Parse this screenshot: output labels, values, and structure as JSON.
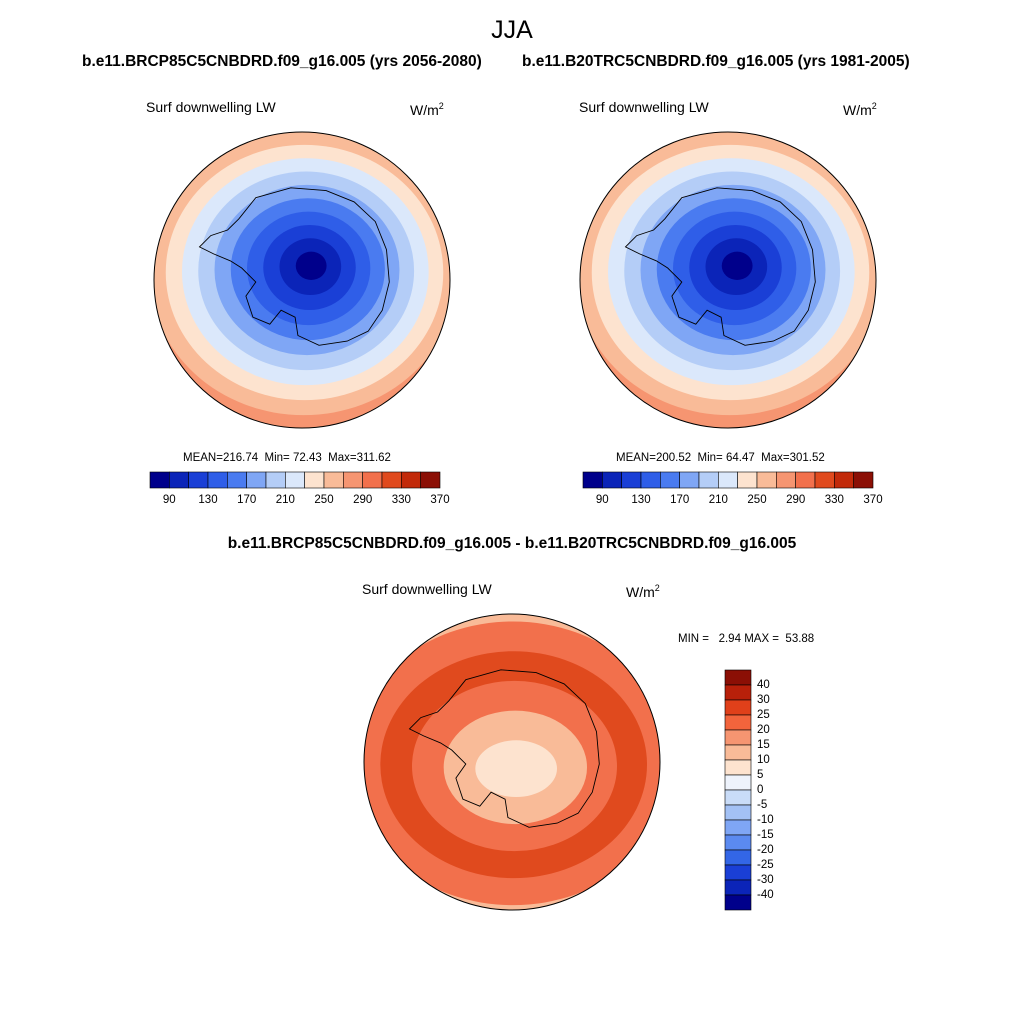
{
  "figure": {
    "title": "JJA",
    "left_case_title": "b.e11.BRCP85C5CNBDRD.f09_g16.005 (yrs 2056-2080)",
    "right_case_title": "b.e11.B20TRC5CNBDRD.f09_g16.005 (yrs 1981-2005)",
    "diff_title": "b.e11.BRCP85C5CNBDRD.f09_g16.005 - b.e11.B20TRC5CNBDRD.f09_g16.005"
  },
  "chart_data": [
    {
      "type": "heatmap",
      "projection": "south-polar stereographic",
      "variable_label": "Surf downwelling LW",
      "units_base": "W/m",
      "units_exp": "2",
      "stats": {
        "mean_label": "MEAN=",
        "mean": "216.74",
        "min_label": "Min=",
        "min": "72.43",
        "max_label": "Max=",
        "max": "311.62"
      },
      "colorbar": {
        "orientation": "horizontal",
        "tick_labels": [
          "90",
          "130",
          "170",
          "210",
          "250",
          "290",
          "330",
          "370"
        ],
        "colors": [
          "#00008b",
          "#0b24b8",
          "#1a3fd6",
          "#2f5ee8",
          "#4a7bf0",
          "#7fa6f5",
          "#b4cdf7",
          "#dbe8fb",
          "#fde3cf",
          "#f9bb98",
          "#f69571",
          "#f2704c",
          "#e04a1e",
          "#c22a0a",
          "#8b0f05"
        ]
      },
      "rings": [
        {
          "value": 300,
          "color": "#e8623a"
        },
        {
          "value": 280,
          "color": "#f69571"
        },
        {
          "value": 260,
          "color": "#f9bb98"
        },
        {
          "value": 240,
          "color": "#fde3cf"
        },
        {
          "value": 220,
          "color": "#dbe8fb"
        },
        {
          "value": 200,
          "color": "#b4cdf7"
        },
        {
          "value": 180,
          "color": "#7fa6f5"
        },
        {
          "value": 160,
          "color": "#4a7bf0"
        },
        {
          "value": 140,
          "color": "#2f5ee8"
        },
        {
          "value": 110,
          "color": "#1a3fd6"
        },
        {
          "value": 90,
          "color": "#0b24b8"
        },
        {
          "value": 75,
          "color": "#00008b"
        }
      ]
    },
    {
      "type": "heatmap",
      "projection": "south-polar stereographic",
      "variable_label": "Surf downwelling LW",
      "units_base": "W/m",
      "units_exp": "2",
      "stats": {
        "mean_label": "MEAN=",
        "mean": "200.52",
        "min_label": "Min=",
        "min": "64.47",
        "max_label": "Max=",
        "max": "301.52"
      },
      "colorbar": {
        "orientation": "horizontal",
        "tick_labels": [
          "90",
          "130",
          "170",
          "210",
          "250",
          "290",
          "330",
          "370"
        ],
        "colors": [
          "#00008b",
          "#0b24b8",
          "#1a3fd6",
          "#2f5ee8",
          "#4a7bf0",
          "#7fa6f5",
          "#b4cdf7",
          "#dbe8fb",
          "#fde3cf",
          "#f9bb98",
          "#f69571",
          "#f2704c",
          "#e04a1e",
          "#c22a0a",
          "#8b0f05"
        ]
      },
      "rings": [
        {
          "value": 285,
          "color": "#f2704c"
        },
        {
          "value": 270,
          "color": "#f69571"
        },
        {
          "value": 250,
          "color": "#f9bb98"
        },
        {
          "value": 230,
          "color": "#fde3cf"
        },
        {
          "value": 210,
          "color": "#dbe8fb"
        },
        {
          "value": 190,
          "color": "#b4cdf7"
        },
        {
          "value": 170,
          "color": "#7fa6f5"
        },
        {
          "value": 150,
          "color": "#4a7bf0"
        },
        {
          "value": 130,
          "color": "#2f5ee8"
        },
        {
          "value": 100,
          "color": "#1a3fd6"
        },
        {
          "value": 85,
          "color": "#0b24b8"
        },
        {
          "value": 68,
          "color": "#00008b"
        }
      ]
    },
    {
      "type": "heatmap",
      "projection": "south-polar stereographic",
      "variable_label": "Surf downwelling LW",
      "units_base": "W/m",
      "units_exp": "2",
      "stats": {
        "min_label": "MIN =",
        "min": "2.94",
        "max_label": "MAX =",
        "max": "53.88"
      },
      "colorbar": {
        "orientation": "vertical",
        "tick_labels": [
          "40",
          "30",
          "25",
          "20",
          "15",
          "10",
          "5",
          "0",
          "-5",
          "-10",
          "-15",
          "-20",
          "-25",
          "-30",
          "-40"
        ],
        "colors": [
          "#8b0f05",
          "#b8200a",
          "#e0401a",
          "#f2643c",
          "#f69571",
          "#f9bb98",
          "#fde3cf",
          "#eef3fc",
          "#c9dcf8",
          "#a3c1f5",
          "#7fa6f5",
          "#5b8af0",
          "#3366e6",
          "#1a3fd6",
          "#0b24b8",
          "#00008b"
        ]
      },
      "rings": [
        {
          "value": 12,
          "color": "#f9bb98"
        },
        {
          "value": 22,
          "color": "#f2704c"
        },
        {
          "value": 30,
          "color": "#e04a1e"
        },
        {
          "value": 22,
          "color": "#f2704c"
        },
        {
          "value": 12,
          "color": "#f9bb98"
        },
        {
          "value": 7,
          "color": "#fde3cf"
        }
      ]
    }
  ]
}
